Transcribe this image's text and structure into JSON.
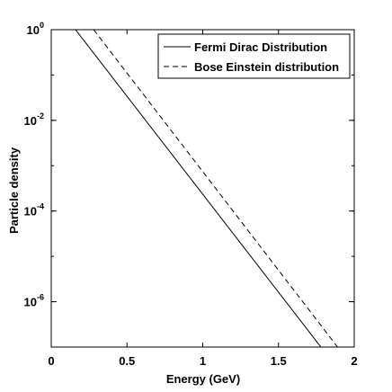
{
  "chart_data": {
    "type": "line",
    "title": "",
    "xlabel": "Energy (GeV)",
    "ylabel": "Particle density",
    "xlim": [
      0,
      2
    ],
    "ylim": [
      1e-07,
      1
    ],
    "yscale": "log",
    "grid": false,
    "legend_position": "top-right",
    "x_ticks": [
      {
        "value": 0,
        "label": "0"
      },
      {
        "value": 0.5,
        "label": "0.5"
      },
      {
        "value": 1,
        "label": "1"
      },
      {
        "value": 1.5,
        "label": "1.5"
      },
      {
        "value": 2,
        "label": "2"
      }
    ],
    "y_ticks": [
      {
        "value": 1,
        "base": "10",
        "exp": "0"
      },
      {
        "value": 0.01,
        "base": "10",
        "exp": "-2"
      },
      {
        "value": 0.0001,
        "base": "10",
        "exp": "-4"
      },
      {
        "value": 1e-06,
        "base": "10",
        "exp": "-6"
      }
    ],
    "series": [
      {
        "name": "Fermi Dirac Distribution",
        "style": "solid",
        "color": "#000000",
        "x": [
          0.16,
          1.78
        ],
        "y": [
          1.0,
          1e-07
        ]
      },
      {
        "name": "Bose Einstein distribution",
        "style": "dashed",
        "color": "#000000",
        "x": [
          0.28,
          1.89
        ],
        "y": [
          1.0,
          1e-07
        ]
      }
    ]
  }
}
